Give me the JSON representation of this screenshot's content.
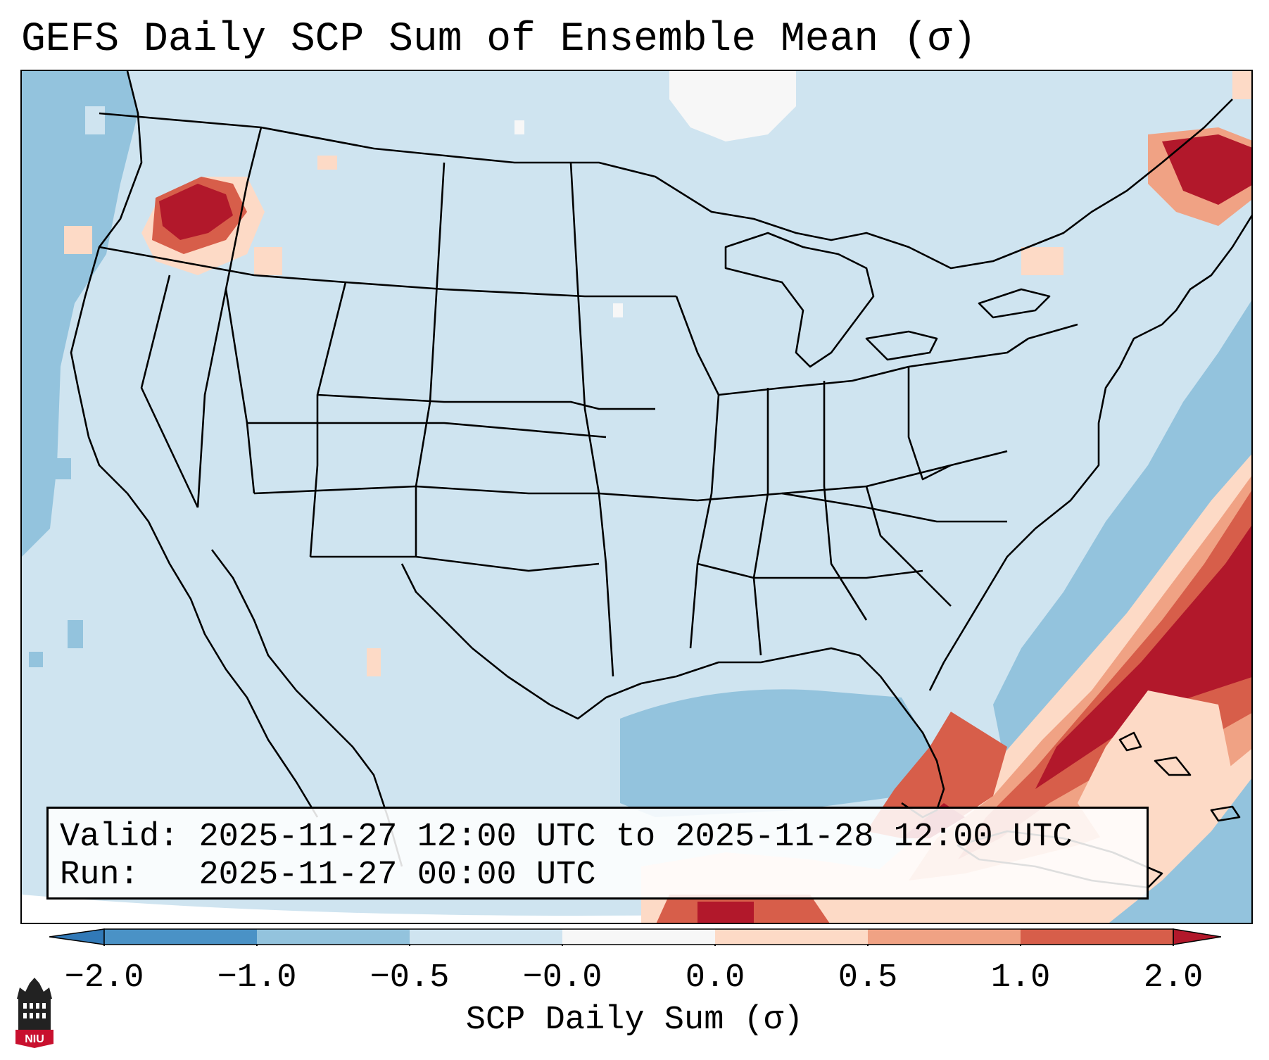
{
  "title": "GEFS Daily SCP Sum of Ensemble Mean (σ)",
  "info": {
    "valid_label": "Valid:",
    "valid_value": "2025-11-27 12:00 UTC to 2025-11-28 12:00 UTC",
    "run_label": "Run:",
    "run_value": "2025-11-27 00:00 UTC"
  },
  "colorbar": {
    "label": "SCP Daily Sum (σ)",
    "ticks": [
      "−2.0",
      "−1.0",
      "−0.5",
      "−0.0",
      "0.0",
      "0.5",
      "1.0",
      "2.0"
    ],
    "colors": {
      "below_min": "#3179b7",
      "b1": "#4a92c6",
      "b2": "#93c3dd",
      "b3": "#cfe4f0",
      "b4": "#f7f7f7",
      "b5": "#fddac6",
      "b6": "#f0a284",
      "b7": "#d75e4a",
      "above_max": "#b2182b"
    }
  },
  "logo": {
    "text": "NIU"
  }
}
